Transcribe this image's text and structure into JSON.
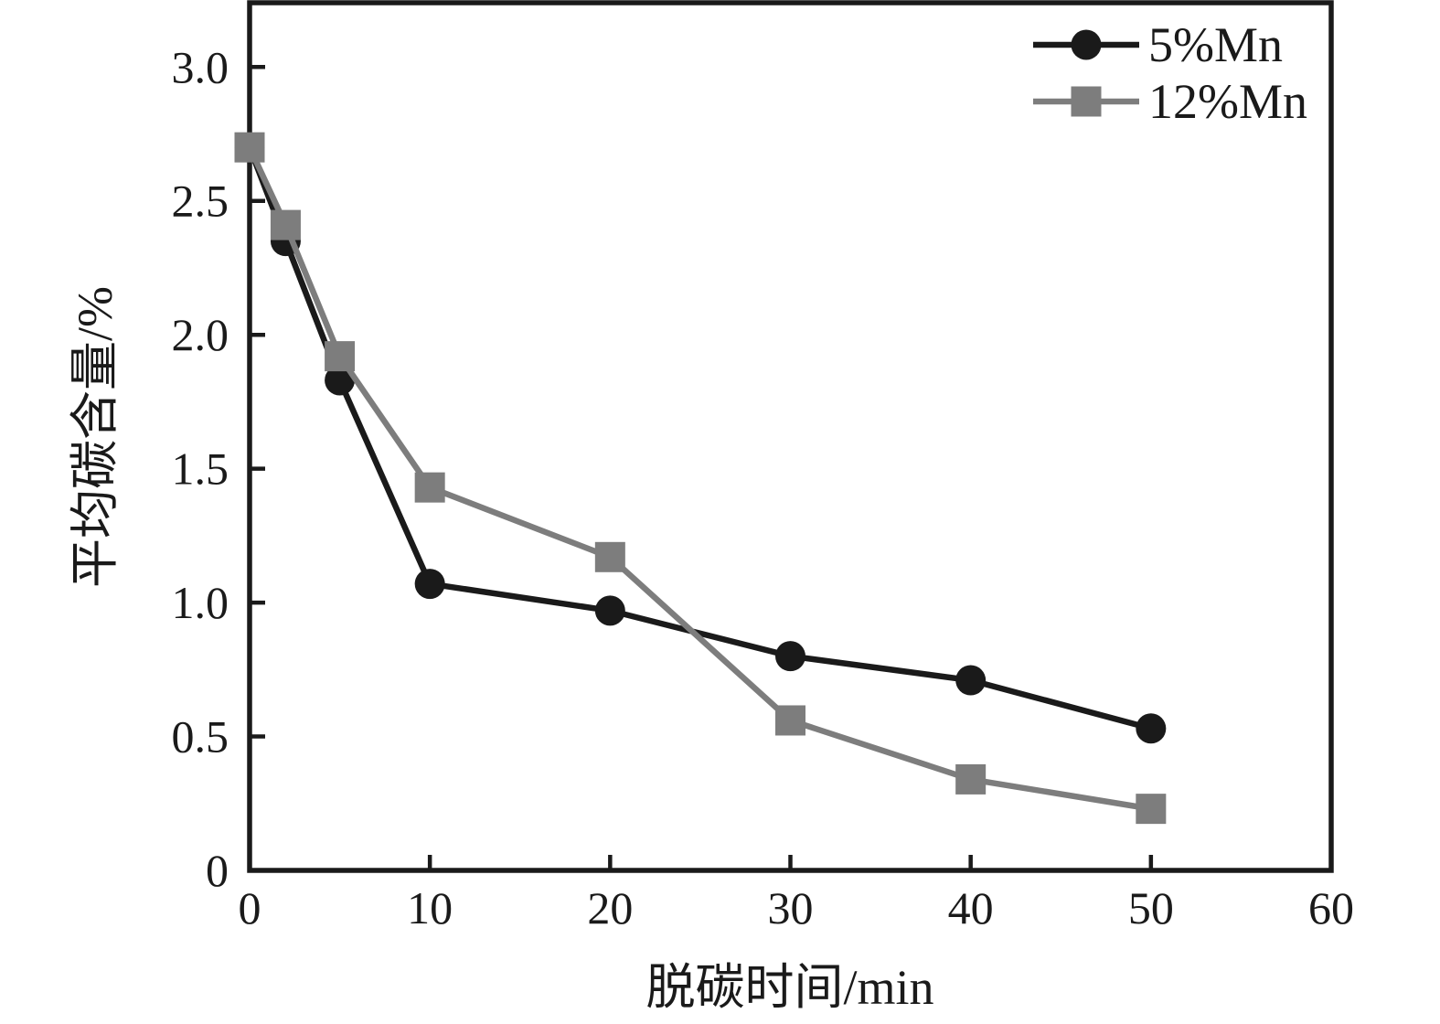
{
  "figure": {
    "background": "#ffffff"
  },
  "chart_data": {
    "type": "line",
    "title": "",
    "xlabel": "脱碳时间/min",
    "ylabel": "平均碳含量/%",
    "xlim": [
      0,
      60
    ],
    "ylim": [
      0,
      3.24
    ],
    "x_ticks": [
      0,
      10,
      20,
      30,
      40,
      50,
      60
    ],
    "x_tick_labels": [
      "0",
      "10",
      "20",
      "30",
      "40",
      "50",
      "60"
    ],
    "y_ticks": [
      0,
      0.5,
      1.0,
      1.5,
      2.0,
      2.5,
      3.0
    ],
    "y_tick_labels": [
      "0",
      "0.5",
      "1.0",
      "1.5",
      "2.0",
      "2.5",
      "3.0"
    ],
    "grid": false,
    "legend_position": "top-right-inside",
    "axis_color": "#1a1a1a",
    "series": [
      {
        "name": "5%Mn",
        "color": "#1a1a1a",
        "marker": "circle",
        "x": [
          0,
          2,
          5,
          10,
          20,
          30,
          40,
          50
        ],
        "y": [
          2.7,
          2.35,
          1.83,
          1.07,
          0.97,
          0.8,
          0.71,
          0.53
        ]
      },
      {
        "name": "12%Mn",
        "color": "#7d7d7d",
        "marker": "square",
        "x": [
          0,
          2,
          5,
          10,
          20,
          30,
          40,
          50
        ],
        "y": [
          2.7,
          2.41,
          1.92,
          1.43,
          1.17,
          0.56,
          0.34,
          0.23
        ]
      }
    ]
  }
}
